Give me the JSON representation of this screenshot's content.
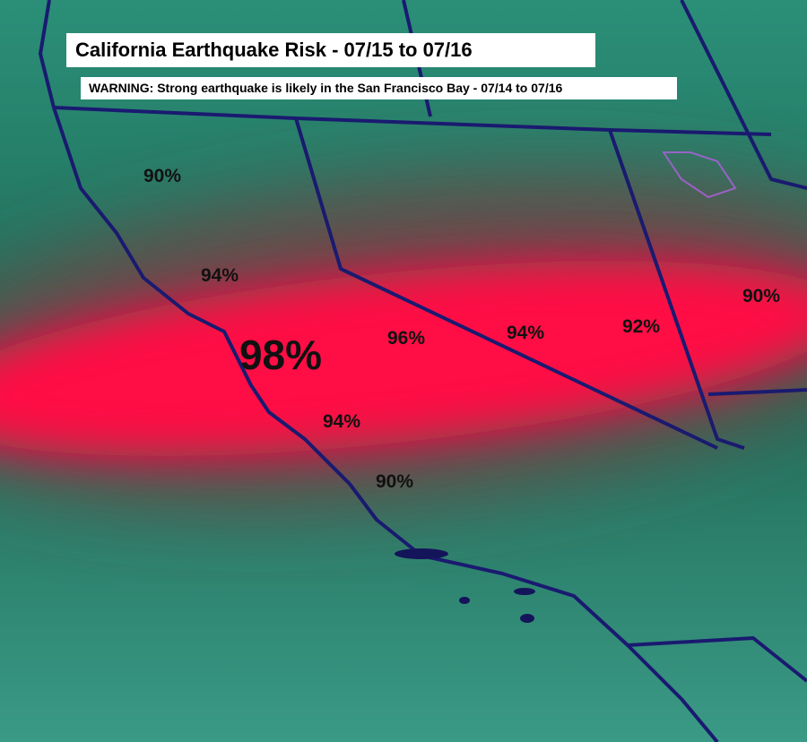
{
  "header": {
    "title": "California Earthquake Risk - 07/15 to 07/16",
    "warning": "WARNING: Strong earthquake is likely in the San Francisco Bay - 07/14 to 07/16"
  },
  "labels": [
    "90%",
    "94%",
    "98%",
    "96%",
    "94%",
    "92%",
    "90%",
    "94%",
    "90%"
  ]
}
